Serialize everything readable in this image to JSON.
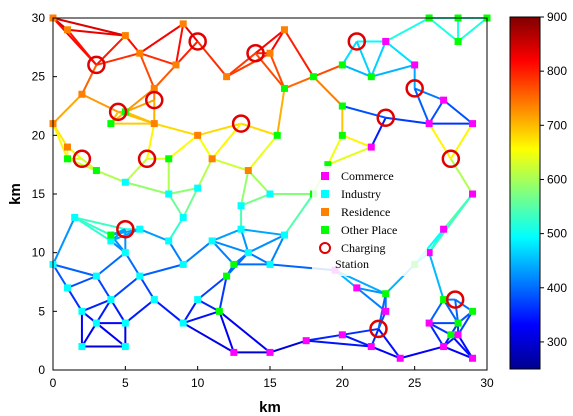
{
  "chart_data": {
    "type": "scatter",
    "xlabel": "km",
    "ylabel": "km",
    "xlim": [
      0,
      30
    ],
    "ylim": [
      0,
      30
    ],
    "x_ticks": [
      "0",
      "5",
      "10",
      "15",
      "20",
      "25",
      "30"
    ],
    "y_ticks": [
      "0",
      "5",
      "10",
      "15",
      "20",
      "25",
      "30"
    ],
    "colorbar": {
      "range": [
        250,
        900
      ],
      "ticks": [
        "300",
        "400",
        "500",
        "600",
        "700",
        "800",
        "900"
      ]
    },
    "series": [
      {
        "name": "Commerce",
        "marker": "square",
        "color": "#ff00ff",
        "points": [
          [
            19.5,
            8.5
          ],
          [
            21,
            7
          ],
          [
            23,
            5
          ],
          [
            22,
            2
          ],
          [
            20,
            3
          ],
          [
            17.5,
            2.5
          ],
          [
            15,
            1.5
          ],
          [
            12.5,
            1.5
          ],
          [
            24,
            1
          ],
          [
            27,
            2
          ],
          [
            28,
            3
          ],
          [
            29,
            1
          ],
          [
            26,
            4
          ],
          [
            27,
            12
          ],
          [
            26,
            10
          ],
          [
            29,
            15
          ],
          [
            22,
            19
          ],
          [
            26,
            21
          ],
          [
            29,
            21
          ],
          [
            27,
            23
          ],
          [
            25,
            26
          ],
          [
            23,
            28
          ]
        ]
      },
      {
        "name": "Industry",
        "marker": "square",
        "color": "#00ffff",
        "points": [
          [
            0,
            9
          ],
          [
            1,
            7
          ],
          [
            3,
            8
          ],
          [
            4,
            6
          ],
          [
            5,
            4
          ],
          [
            3,
            4
          ],
          [
            2,
            5
          ],
          [
            2,
            2
          ],
          [
            5,
            2
          ],
          [
            7,
            6
          ],
          [
            6,
            8
          ],
          [
            4,
            11
          ],
          [
            5,
            10
          ],
          [
            8,
            11
          ],
          [
            10,
            6
          ],
          [
            9,
            9
          ],
          [
            9,
            4
          ],
          [
            6,
            12
          ],
          [
            8,
            15
          ],
          [
            9,
            13
          ],
          [
            5,
            16
          ],
          [
            1.5,
            13
          ],
          [
            10,
            15.5
          ],
          [
            13,
            12
          ],
          [
            13.5,
            10
          ],
          [
            15,
            9
          ],
          [
            16,
            11.5
          ],
          [
            15,
            15
          ],
          [
            13,
            14
          ],
          [
            11,
            11
          ]
        ]
      },
      {
        "name": "Residence",
        "marker": "square",
        "color": "#ff8000",
        "points": [
          [
            0,
            30
          ],
          [
            1,
            29
          ],
          [
            5,
            28.5
          ],
          [
            9,
            29.5
          ],
          [
            2,
            23.5
          ],
          [
            6,
            27
          ],
          [
            8.5,
            26
          ],
          [
            12,
            25
          ],
          [
            16,
            29
          ],
          [
            13.5,
            17
          ],
          [
            11,
            18
          ],
          [
            10,
            20
          ],
          [
            7,
            21
          ],
          [
            1,
            19
          ],
          [
            0,
            21
          ],
          [
            7,
            24
          ],
          [
            15,
            27
          ]
        ]
      },
      {
        "name": "Other Place",
        "marker": "square",
        "color": "#00ff00",
        "points": [
          [
            16,
            24
          ],
          [
            18,
            25
          ],
          [
            20,
            22.5
          ],
          [
            20,
            26
          ],
          [
            22,
            25
          ],
          [
            15.5,
            20
          ],
          [
            18,
            15
          ],
          [
            19,
            17.5
          ],
          [
            20,
            20
          ],
          [
            12,
            8
          ],
          [
            12.5,
            9
          ],
          [
            11.5,
            5
          ],
          [
            26,
            30
          ],
          [
            28,
            28
          ],
          [
            28,
            30
          ],
          [
            30,
            30
          ],
          [
            25,
            9
          ],
          [
            23,
            6.5
          ],
          [
            27,
            6
          ],
          [
            27.5,
            3
          ],
          [
            28,
            4
          ],
          [
            29,
            5
          ],
          [
            1,
            18
          ],
          [
            3,
            17
          ],
          [
            8,
            18
          ],
          [
            4,
            11.5
          ],
          [
            4,
            21
          ],
          [
            5,
            22
          ]
        ]
      },
      {
        "name": "Charging Station",
        "marker": "circle",
        "color": "#e00000",
        "points": [
          [
            3,
            26
          ],
          [
            7,
            23
          ],
          [
            4.5,
            22
          ],
          [
            2,
            18
          ],
          [
            6.5,
            18
          ],
          [
            10,
            28
          ],
          [
            14,
            27
          ],
          [
            13,
            21
          ],
          [
            21,
            28
          ],
          [
            25,
            24
          ],
          [
            23,
            21.5
          ],
          [
            27.5,
            18
          ],
          [
            5,
            12
          ],
          [
            22.5,
            3.5
          ],
          [
            27.8,
            6
          ]
        ]
      }
    ]
  }
}
